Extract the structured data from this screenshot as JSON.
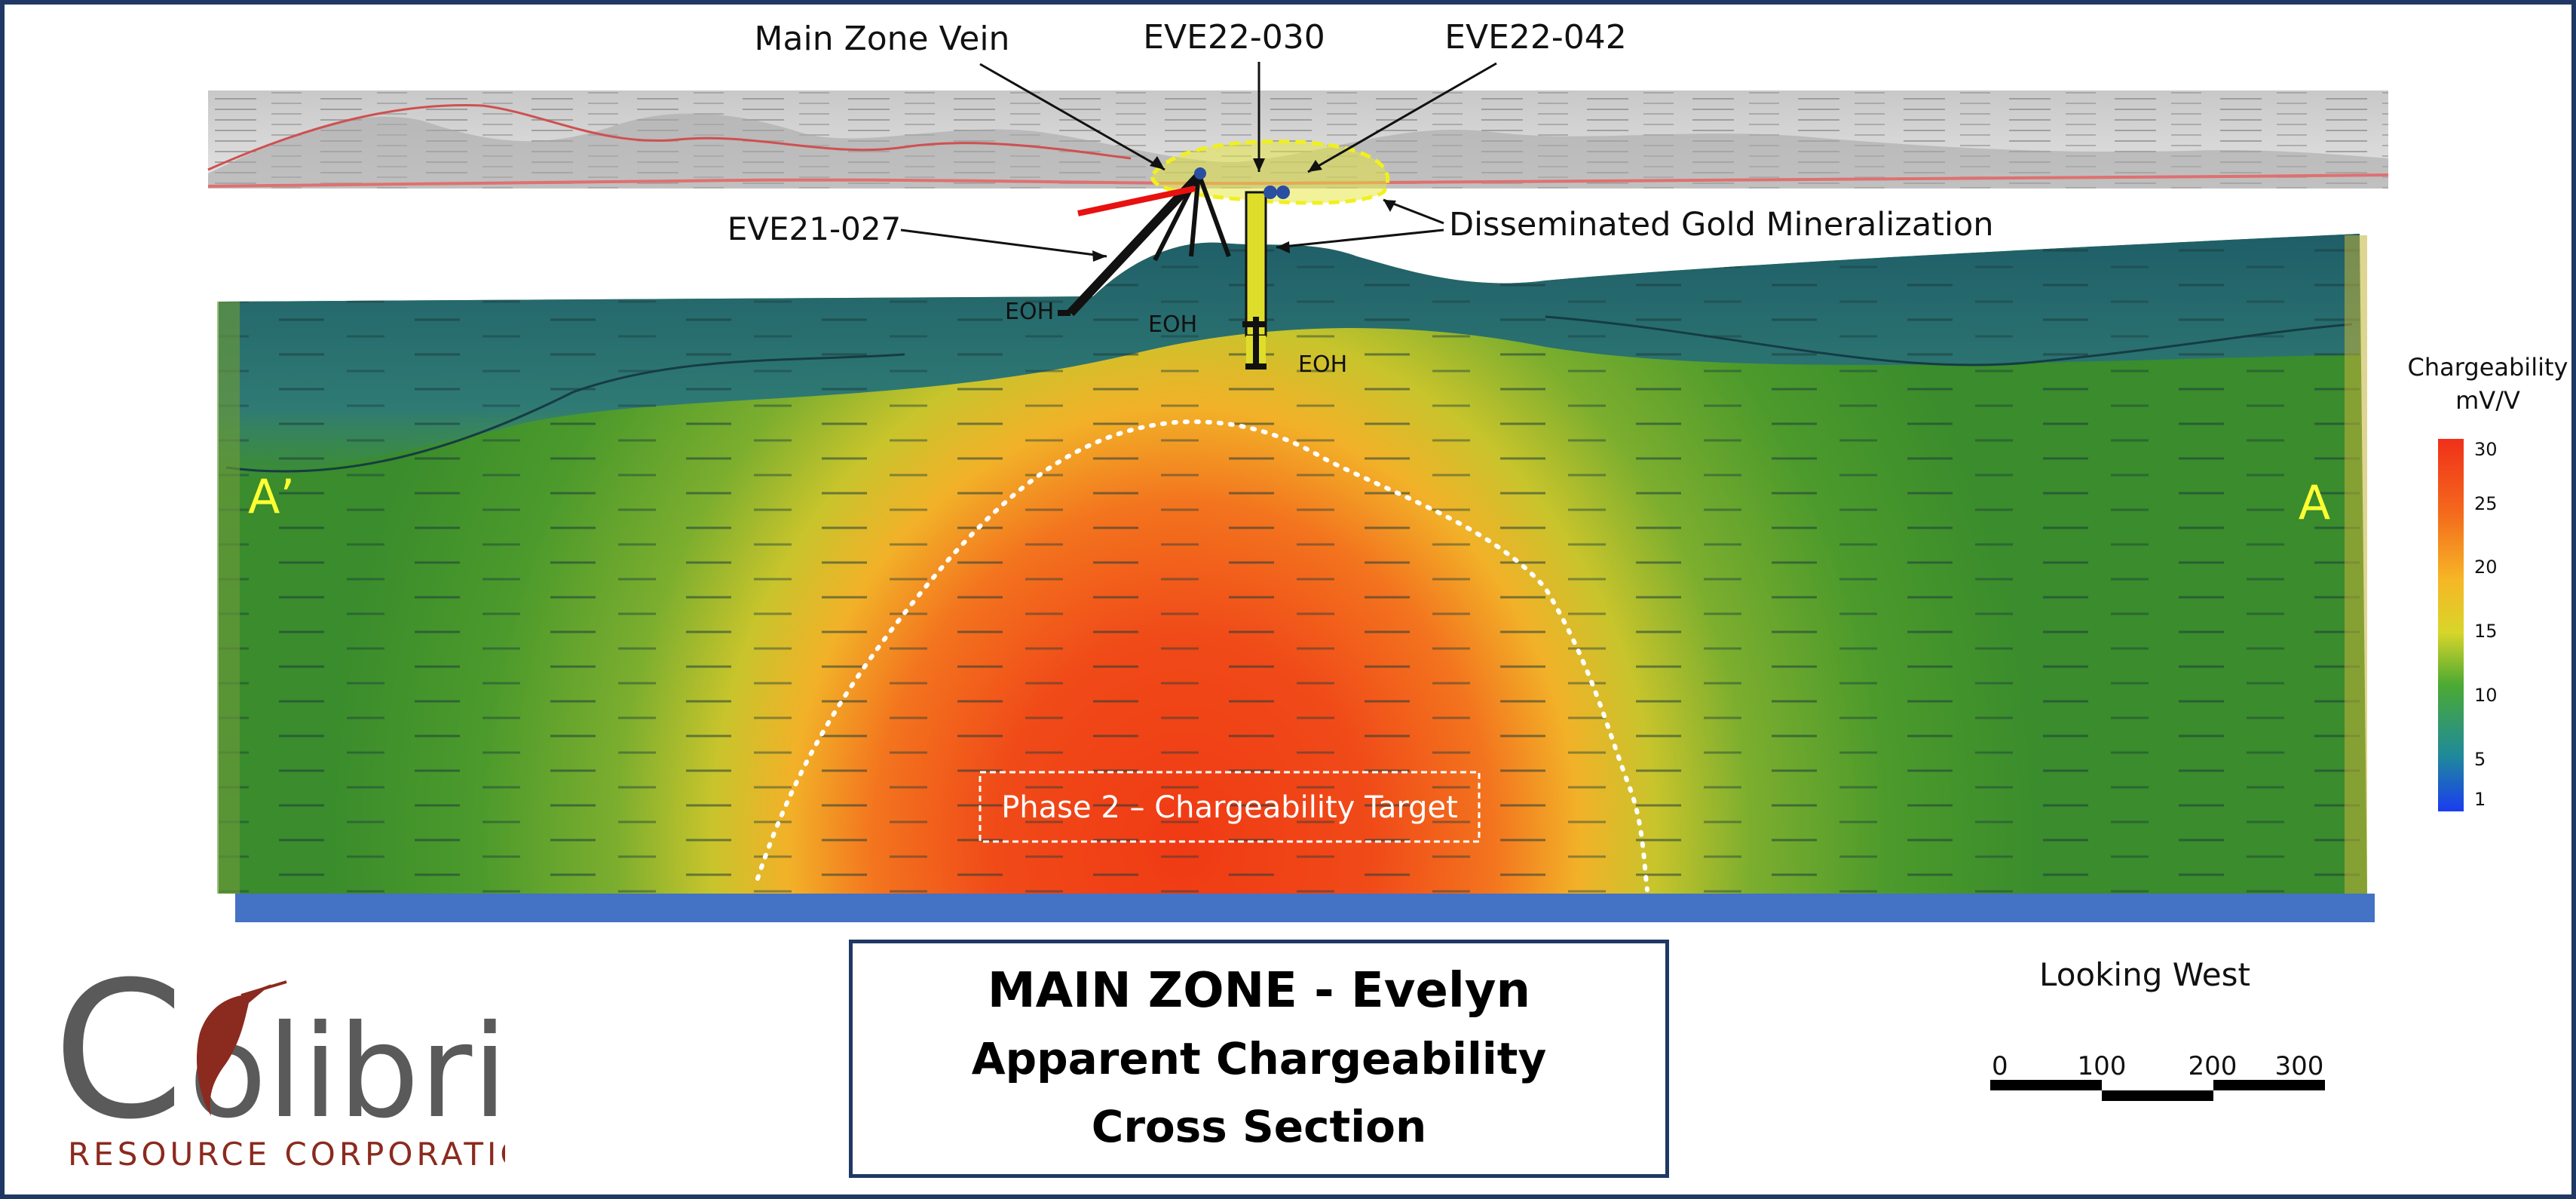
{
  "colors": {
    "frame": "#1f3864",
    "high": "#f04018",
    "mid": "#f2c02a",
    "low": "#3f9a2c",
    "surface_dark": "#2a6a72",
    "drillhole": "#dede2a",
    "vein": "#e81010",
    "target_outline": "#ffffff",
    "base_band": "#4472c4",
    "logo_grey": "#5a5a5a",
    "logo_red": "#8b2a1e"
  },
  "callouts": {
    "main_zone_vein": "Main Zone Vein",
    "eve22_030": "EVE22-030",
    "eve22_042": "EVE22-042",
    "eve21_027": "EVE21-027",
    "disseminated": "Disseminated Gold Mineralization"
  },
  "eoh_labels": [
    "EOH",
    "EOH",
    "EOH"
  ],
  "section_markers": {
    "left": "A’",
    "right": "A"
  },
  "target_label": "Phase 2 – Chargeability Target",
  "legend": {
    "title_line1": "Chargeability",
    "title_line2": "mV/V",
    "ticks": [
      "30",
      "25",
      "20",
      "15",
      "10",
      "5",
      "1"
    ]
  },
  "title": {
    "line1": "MAIN ZONE - Evelyn",
    "line2": "Apparent Chargeability",
    "line3": "Cross Section"
  },
  "looking": "Looking West",
  "scale_bar": {
    "ticks": [
      "0",
      "100",
      "200",
      "300"
    ]
  },
  "logo": {
    "name": "Colibri",
    "subtitle": "RESOURCE CORPORATION"
  }
}
